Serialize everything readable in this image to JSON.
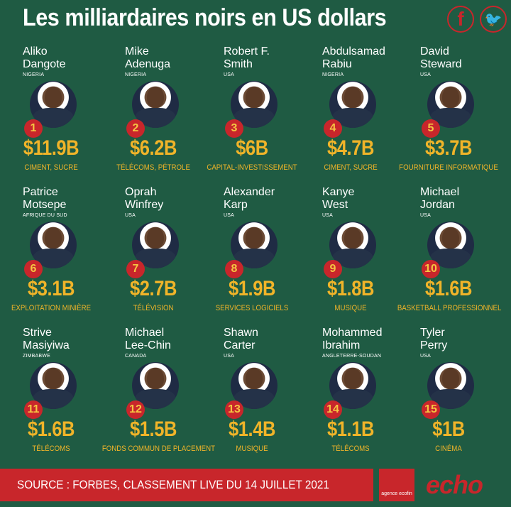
{
  "title": "Les milliardaires noirs en US dollars",
  "social": {
    "facebook_icon": "facebook-icon",
    "twitter_icon": "twitter-icon"
  },
  "billionaires": [
    {
      "rank": "1",
      "first": "Aliko",
      "last": "Dangote",
      "country": "NIGERIA",
      "worth": "$11.9B",
      "sector": "CIMENT, SUCRE"
    },
    {
      "rank": "2",
      "first": "Mike",
      "last": "Adenuga",
      "country": "NIGERIA",
      "worth": "$6.2B",
      "sector": "TÉLÉCOMS, PÉTROLE"
    },
    {
      "rank": "3",
      "first": "Robert F.",
      "last": "Smith",
      "country": "USA",
      "worth": "$6B",
      "sector": "CAPITAL-INVESTISSEMENT"
    },
    {
      "rank": "4",
      "first": "Abdulsamad",
      "last": "Rabiu",
      "country": "NIGERIA",
      "worth": "$4.7B",
      "sector": "CIMENT, SUCRE"
    },
    {
      "rank": "5",
      "first": "David",
      "last": "Steward",
      "country": "USA",
      "worth": "$3.7B",
      "sector": "FOURNITURE INFORMATIQUE"
    },
    {
      "rank": "6",
      "first": "Patrice",
      "last": "Motsepe",
      "country": "AFRIQUE DU SUD",
      "worth": "$3.1B",
      "sector": "EXPLOITATION MINIÈRE"
    },
    {
      "rank": "7",
      "first": "Oprah",
      "last": "Winfrey",
      "country": "USA",
      "worth": "$2.7B",
      "sector": "TÉLÉVISION"
    },
    {
      "rank": "8",
      "first": "Alexander",
      "last": "Karp",
      "country": "USA",
      "worth": "$1.9B",
      "sector": "SERVICES LOGICIELS"
    },
    {
      "rank": "9",
      "first": "Kanye",
      "last": "West",
      "country": "USA",
      "worth": "$1.8B",
      "sector": "MUSIQUE"
    },
    {
      "rank": "10",
      "first": "Michael",
      "last": "Jordan",
      "country": "USA",
      "worth": "$1.6B",
      "sector": "BASKETBALL PROFESSIONNEL"
    },
    {
      "rank": "11",
      "first": "Strive",
      "last": "Masiyiwa",
      "country": "ZIMBABWE",
      "worth": "$1.6B",
      "sector": "TÉLÉCOMS"
    },
    {
      "rank": "12",
      "first": "Michael",
      "last": "Lee-Chin",
      "country": "CANADA",
      "worth": "$1.5B",
      "sector": "FONDS COMMUN DE PLACEMENT"
    },
    {
      "rank": "13",
      "first": "Shawn",
      "last": "Carter",
      "country": "USA",
      "worth": "$1.4B",
      "sector": "MUSIQUE"
    },
    {
      "rank": "14",
      "first": "Mohammed",
      "last": "Ibrahim",
      "country": "ANGLETERRE-SOUDAN",
      "worth": "$1.1B",
      "sector": "TÉLÉCOMS"
    },
    {
      "rank": "15",
      "first": "Tyler",
      "last": "Perry",
      "country": "USA",
      "worth": "$1B",
      "sector": "CINÉMA"
    }
  ],
  "footer": {
    "source": "SOURCE : FORBES, CLASSEMENT LIVE DU 14 JUILLET 2021",
    "agence": "agence ecofin",
    "brand": "echo"
  },
  "colors": {
    "background": "#1f5b43",
    "accent_red": "#c8262b",
    "gold": "#f0b429"
  }
}
